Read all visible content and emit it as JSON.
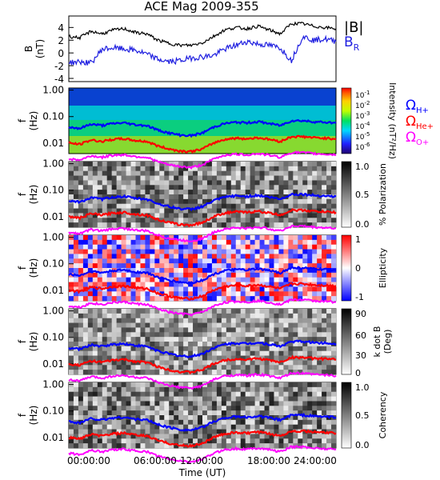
{
  "title": "ACE Mag 2009-355",
  "colors": {
    "btot": "#000000",
    "br": "#1f1fe0",
    "h_plus": "#0000ff",
    "he_plus": "#ff0000",
    "o_plus": "#ff00ff"
  },
  "x_axis": {
    "label": "Time (UT)",
    "ticks": [
      "00:00:00",
      "06:00:00",
      "12:00:00",
      "18:00:00",
      "24:00:00"
    ],
    "range_hours": [
      0,
      24
    ]
  },
  "panel_b": {
    "ylabel_line1": "B",
    "ylabel_line2": "(nT)",
    "ticks": [
      "4",
      "2",
      "0",
      "-2",
      "-4"
    ],
    "legend_btot": "|B|",
    "legend_br_main": "B",
    "legend_br_sub": "R"
  },
  "freq_axis": {
    "ylabel_line1": "f",
    "ylabel_line2": "(Hz)",
    "ticks": [
      "1.00",
      "0.10",
      "0.01"
    ]
  },
  "gyro_legend": {
    "omega": "Ω",
    "h": "H+",
    "he": "He+",
    "o": "O+"
  },
  "colorbars": {
    "intensity": {
      "label": "Intensity (nT²/Hz)",
      "ticks": [
        {
          "base": "10",
          "exp": "-1"
        },
        {
          "base": "10",
          "exp": "-2"
        },
        {
          "base": "10",
          "exp": "-3"
        },
        {
          "base": "10",
          "exp": "-4"
        },
        {
          "base": "10",
          "exp": "-5"
        },
        {
          "base": "10",
          "exp": "-6"
        }
      ]
    },
    "polarization": {
      "label": "% Polarization",
      "ticks": [
        "1.0",
        "0.5",
        "0.0"
      ]
    },
    "ellipticity": {
      "label": "Ellipticity",
      "ticks": [
        "1",
        "0",
        "-1"
      ]
    },
    "k_dot_b": {
      "label_line1": "k dot B",
      "label_line2": "(Deg)",
      "ticks": [
        "90",
        "60",
        "30",
        "0"
      ]
    },
    "coherency": {
      "label": "Coherency",
      "ticks": [
        "1.0",
        "0.5",
        "0.0"
      ]
    }
  },
  "chart_data": [
    {
      "type": "line",
      "title": "ACE Mag 2009-355",
      "ylabel": "B (nT)",
      "ylim": [
        -4.5,
        5.8
      ],
      "x_hours": [
        0,
        1,
        2,
        3,
        4,
        5,
        6,
        7,
        8,
        9,
        10,
        11,
        12,
        13,
        14,
        15,
        16,
        17,
        18,
        19,
        20,
        21,
        22,
        23,
        24
      ],
      "series": [
        {
          "name": "|B|",
          "values": [
            2.6,
            2.4,
            3.4,
            3.0,
            3.6,
            3.8,
            3.2,
            3.0,
            2.0,
            1.5,
            1.2,
            1.2,
            1.6,
            2.6,
            3.6,
            4.0,
            3.8,
            4.2,
            3.6,
            3.0,
            4.6,
            4.6,
            4.2,
            4.0,
            3.8
          ]
        },
        {
          "name": "B_R",
          "values": [
            -1.5,
            -1.4,
            -1.6,
            0.6,
            0.8,
            0.6,
            0.4,
            -0.2,
            -1.0,
            -1.4,
            -1.2,
            -0.8,
            -0.6,
            -0.4,
            0.6,
            1.2,
            1.8,
            1.4,
            1.2,
            0.8,
            -1.2,
            2.6,
            2.0,
            2.2,
            1.8
          ]
        }
      ]
    },
    {
      "type": "line",
      "title": "Ion gyrofrequencies",
      "ylabel": "f (Hz)",
      "ylim": [
        0.004,
        1.2
      ],
      "x_hours": [
        0,
        1,
        2,
        3,
        4,
        5,
        6,
        7,
        8,
        9,
        10,
        11,
        12,
        13,
        14,
        15,
        16,
        17,
        18,
        19,
        20,
        21,
        22,
        23,
        24
      ],
      "series": [
        {
          "name": "H+",
          "values": [
            0.04,
            0.036,
            0.052,
            0.046,
            0.055,
            0.058,
            0.049,
            0.046,
            0.031,
            0.024,
            0.02,
            0.019,
            0.024,
            0.04,
            0.055,
            0.061,
            0.058,
            0.064,
            0.055,
            0.046,
            0.07,
            0.07,
            0.064,
            0.061,
            0.058
          ]
        },
        {
          "name": "He+",
          "values": [
            0.01,
            0.009,
            0.013,
            0.0115,
            0.0138,
            0.0145,
            0.0123,
            0.0115,
            0.0078,
            0.006,
            0.005,
            0.0048,
            0.006,
            0.01,
            0.0138,
            0.0153,
            0.0145,
            0.016,
            0.0138,
            0.0115,
            0.0175,
            0.0175,
            0.016,
            0.0153,
            0.0145
          ]
        },
        {
          "name": "O+",
          "values": [
            0.0025,
            0.0023,
            0.0033,
            0.0029,
            0.0035,
            0.0036,
            0.0031,
            0.0029,
            0.002,
            0.0015,
            0.0013,
            0.0012,
            0.0015,
            0.0025,
            0.0035,
            0.0038,
            0.0036,
            0.004,
            0.0035,
            0.0029,
            0.0044,
            0.0044,
            0.004,
            0.0038,
            0.0036
          ]
        }
      ]
    },
    {
      "type": "heatmap",
      "title": "Intensity",
      "colorbar": "Intensity (nT²/Hz)",
      "clim_log10": [
        -6,
        -1
      ]
    },
    {
      "type": "heatmap",
      "title": "% Polarization",
      "colorbar": "% Polarization",
      "clim": [
        0,
        1
      ]
    },
    {
      "type": "heatmap",
      "title": "Ellipticity",
      "colorbar": "Ellipticity",
      "clim": [
        -1,
        1
      ]
    },
    {
      "type": "heatmap",
      "title": "k dot B",
      "colorbar": "k dot B (Deg)",
      "clim": [
        0,
        90
      ]
    },
    {
      "type": "heatmap",
      "title": "Coherency",
      "colorbar": "Coherency",
      "clim": [
        0,
        1
      ]
    }
  ]
}
